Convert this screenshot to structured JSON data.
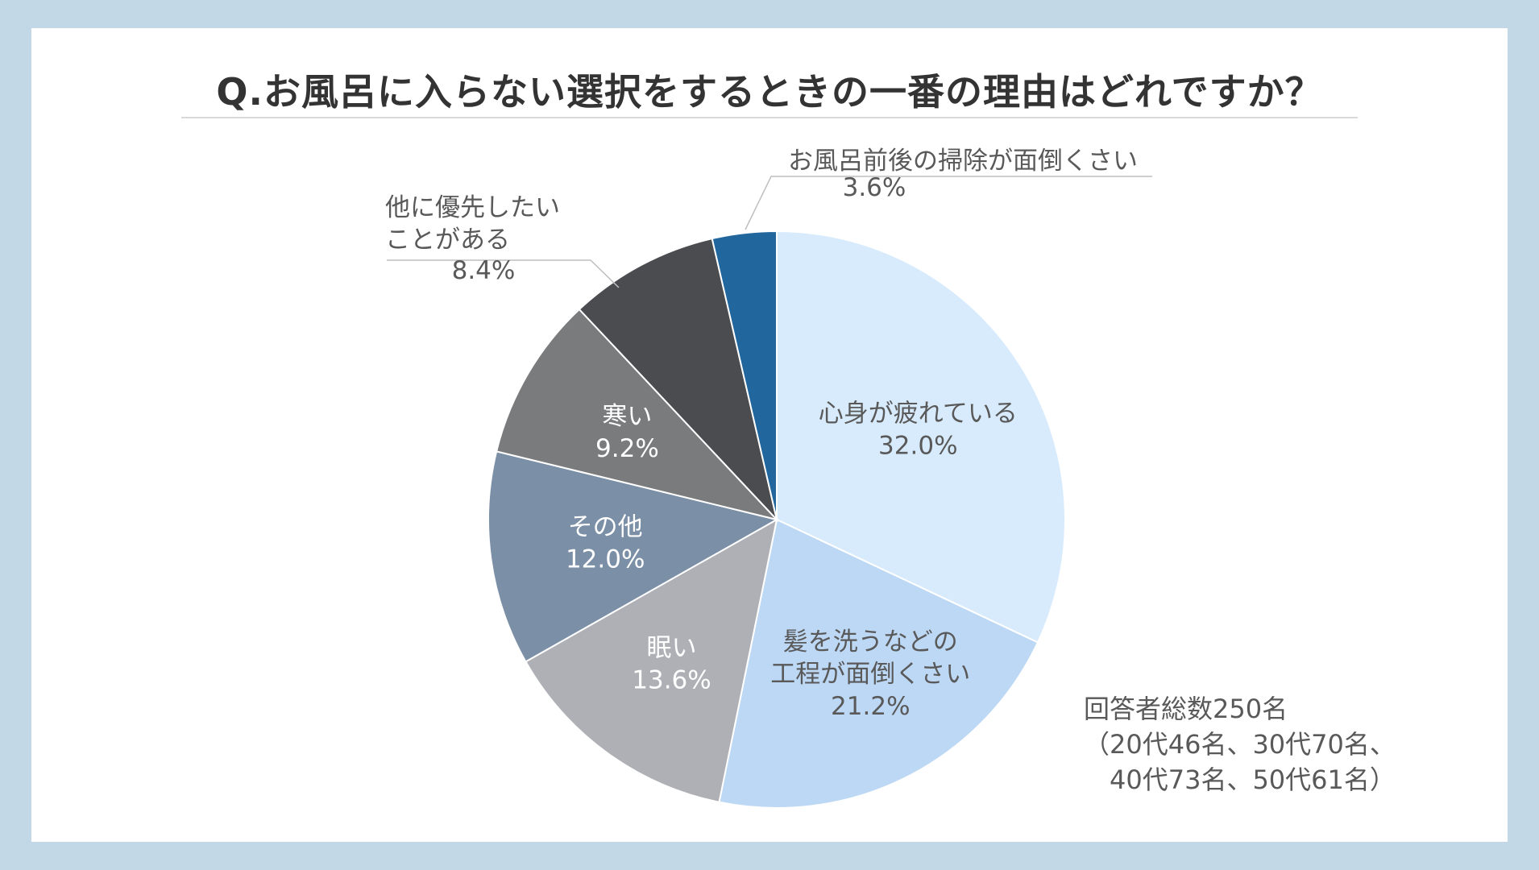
{
  "chart_data": {
    "type": "pie",
    "title": "Q.お風呂に入らない選択をするときの一番の理由はどれですか？",
    "slices": [
      {
        "label_lines": [
          "心身が疲れている"
        ],
        "value": 32.0,
        "value_label": "32.0%",
        "color": "#d8ebfc",
        "text_color": "#595959"
      },
      {
        "label_lines": [
          "髪を洗うなどの",
          "工程が面倒くさい"
        ],
        "value": 21.2,
        "value_label": "21.2%",
        "color": "#bdd8f5",
        "text_color": "#595959"
      },
      {
        "label_lines": [
          "眠い"
        ],
        "value": 13.6,
        "value_label": "13.6%",
        "color": "#afb0b6",
        "text_color": "#ffffff"
      },
      {
        "label_lines": [
          "その他"
        ],
        "value": 12.0,
        "value_label": "12.0%",
        "color": "#7b8fa6",
        "text_color": "#ffffff"
      },
      {
        "label_lines": [
          "寒い"
        ],
        "value": 9.2,
        "value_label": "9.2%",
        "color": "#7a7b7d",
        "text_color": "#ffffff"
      },
      {
        "label_lines": [
          "他に優先したい",
          "ことがある"
        ],
        "value": 8.4,
        "value_label": "8.4%",
        "color": "#4b4c4f",
        "text_color": "#595959"
      },
      {
        "label_lines": [
          "お風呂前後の掃除が面倒くさい"
        ],
        "value": 3.6,
        "value_label": "3.6%",
        "color": "#21669c",
        "text_color": "#595959"
      }
    ],
    "start_angle": "12 o'clock",
    "direction": "clockwise"
  },
  "note": {
    "line1": "回答者総数250名",
    "line2": "（20代46名、30代70名、",
    "line3": "　40代73名、50代61名）"
  }
}
